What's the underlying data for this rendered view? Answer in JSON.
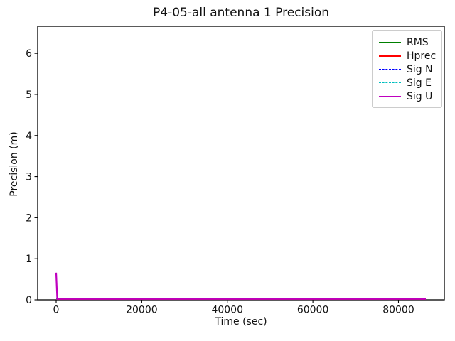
{
  "figure": {
    "background_color": "#ffffff",
    "spine_color": "#000000",
    "tick_color": "#000000",
    "legend_border_color": "#cccccc"
  },
  "chart_data": {
    "type": "line",
    "title": "P4-05-all antenna 1 Precision",
    "xlabel": "Time (sec)",
    "ylabel": "Precision (m)",
    "xlim": [
      -4320,
      90720
    ],
    "ylim": [
      0,
      6.66
    ],
    "xticks": [
      0,
      20000,
      40000,
      60000,
      80000
    ],
    "yticks": [
      0,
      1,
      2,
      3,
      4,
      5,
      6
    ],
    "grid": false,
    "legend_position": "upper right",
    "series": [
      {
        "name": "RMS",
        "color": "#008000",
        "style": "solid",
        "line_width": 2.2,
        "points": [
          [
            0,
            0.02
          ],
          [
            86400,
            0.02
          ]
        ]
      },
      {
        "name": "Hprec",
        "color": "#ff0000",
        "style": "solid",
        "line_width": 2.2,
        "points": [
          [
            0,
            0.02
          ],
          [
            86400,
            0.02
          ]
        ]
      },
      {
        "name": "Sig N",
        "color": "#0000ff",
        "style": "dashed",
        "line_width": 1.1,
        "points": [
          [
            0,
            0.02
          ],
          [
            86400,
            0.02
          ]
        ]
      },
      {
        "name": "Sig E",
        "color": "#00bfbf",
        "style": "dashed",
        "line_width": 1.1,
        "points": [
          [
            0,
            0.02
          ],
          [
            86400,
            0.02
          ]
        ]
      },
      {
        "name": "Sig U",
        "color": "#bf00bf",
        "style": "solid",
        "line_width": 2.2,
        "points": [
          [
            0,
            0.66
          ],
          [
            250,
            0.02
          ],
          [
            86400,
            0.02
          ]
        ]
      }
    ]
  }
}
